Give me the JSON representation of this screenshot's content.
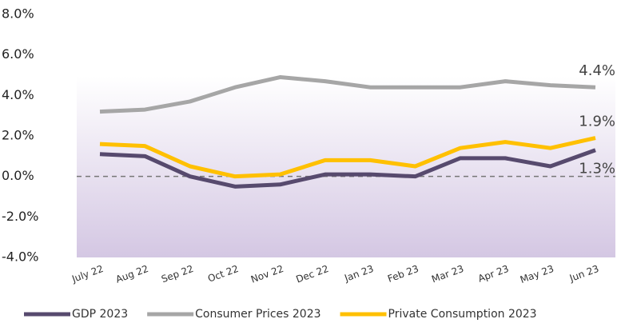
{
  "chart_data": {
    "type": "line",
    "categories": [
      "July 22",
      "Aug 22",
      "Sep 22",
      "Oct 22",
      "Nov 22",
      "Dec 22",
      "Jan 23",
      "Feb 23",
      "Mar 23",
      "Apr 23",
      "May 23",
      "Jun 23"
    ],
    "series": [
      {
        "name": "GDP 2023",
        "color": "#574a6e",
        "values": [
          1.1,
          1.0,
          0.0,
          -0.5,
          -0.4,
          0.1,
          0.1,
          0.0,
          0.9,
          0.9,
          0.5,
          1.3
        ],
        "value_labels": [
          null,
          null,
          null,
          null,
          null,
          null,
          null,
          null,
          null,
          null,
          null,
          "1.3%"
        ]
      },
      {
        "name": "Consumer Prices 2023",
        "color": "#a6a6a6",
        "values": [
          3.2,
          3.3,
          3.7,
          4.4,
          4.9,
          4.7,
          4.4,
          4.4,
          4.4,
          4.7,
          4.5,
          4.4
        ],
        "value_labels": [
          null,
          null,
          null,
          null,
          null,
          null,
          null,
          null,
          null,
          null,
          null,
          "4.4%"
        ]
      },
      {
        "name": "Private Consumption 2023",
        "color": "#ffc000",
        "values": [
          1.6,
          1.5,
          0.5,
          0.0,
          0.1,
          0.8,
          0.8,
          0.5,
          1.4,
          1.7,
          1.4,
          1.9
        ],
        "value_labels": [
          null,
          null,
          null,
          null,
          null,
          null,
          null,
          null,
          null,
          null,
          null,
          "1.9%"
        ]
      }
    ],
    "ylim": [
      -4,
      8
    ],
    "yticks": [
      {
        "value": -4,
        "label": "-4.0%"
      },
      {
        "value": -2,
        "label": "-2.0%"
      },
      {
        "value": 0,
        "label": "0.0%"
      },
      {
        "value": 2,
        "label": "2.0%"
      },
      {
        "value": 4,
        "label": "4.0%"
      },
      {
        "value": 6,
        "label": "6.0%"
      },
      {
        "value": 8,
        "label": "8.0%"
      }
    ],
    "grid": false,
    "legend": "bottom"
  }
}
